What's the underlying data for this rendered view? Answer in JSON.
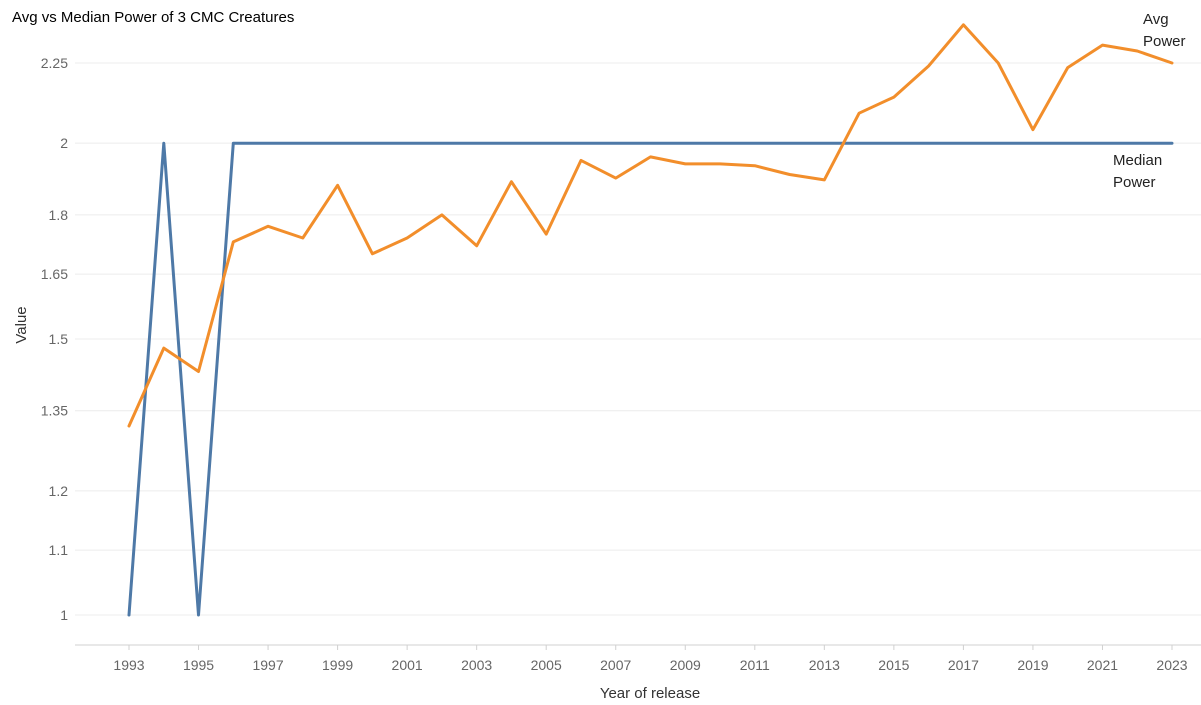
{
  "chart_data": {
    "type": "line",
    "title": "Avg vs Median Power of 3 CMC Creatures",
    "xlabel": "Year of release",
    "ylabel": "Value",
    "y_scale": "log",
    "ylim": [
      0.96,
      2.45
    ],
    "x": [
      1993,
      1994,
      1995,
      1996,
      1997,
      1998,
      1999,
      2000,
      2001,
      2002,
      2003,
      2004,
      2005,
      2006,
      2007,
      2008,
      2009,
      2010,
      2011,
      2012,
      2013,
      2014,
      2015,
      2016,
      2017,
      2018,
      2019,
      2020,
      2021,
      2022,
      2023
    ],
    "x_ticks": [
      "1993",
      "1995",
      "1997",
      "1999",
      "2001",
      "2003",
      "2005",
      "2007",
      "2009",
      "2011",
      "2013",
      "2015",
      "2017",
      "2019",
      "2021",
      "2023"
    ],
    "y_ticks": [
      "1",
      "1.1",
      "1.2",
      "1.35",
      "1.5",
      "1.65",
      "1.8",
      "2",
      "2.25"
    ],
    "grid": true,
    "series": [
      {
        "name": "Avg Power",
        "label_lines": [
          "Avg",
          "Power"
        ],
        "color": "#f28e2b",
        "values": [
          1.32,
          1.48,
          1.43,
          1.73,
          1.77,
          1.74,
          1.88,
          1.7,
          1.74,
          1.8,
          1.72,
          1.89,
          1.75,
          1.95,
          1.9,
          1.96,
          1.94,
          1.94,
          1.935,
          1.91,
          1.895,
          2.09,
          2.14,
          2.24,
          2.38,
          2.25,
          2.04,
          2.235,
          2.31,
          2.29,
          2.25
        ]
      },
      {
        "name": "Median Power",
        "label_lines": [
          "Median",
          "Power"
        ],
        "color": "#4e79a7",
        "values": [
          1,
          2,
          1,
          2,
          2,
          2,
          2,
          2,
          2,
          2,
          2,
          2,
          2,
          2,
          2,
          2,
          2,
          2,
          2,
          2,
          2,
          2,
          2,
          2,
          2,
          2,
          2,
          2,
          2,
          2,
          2
        ]
      }
    ]
  }
}
